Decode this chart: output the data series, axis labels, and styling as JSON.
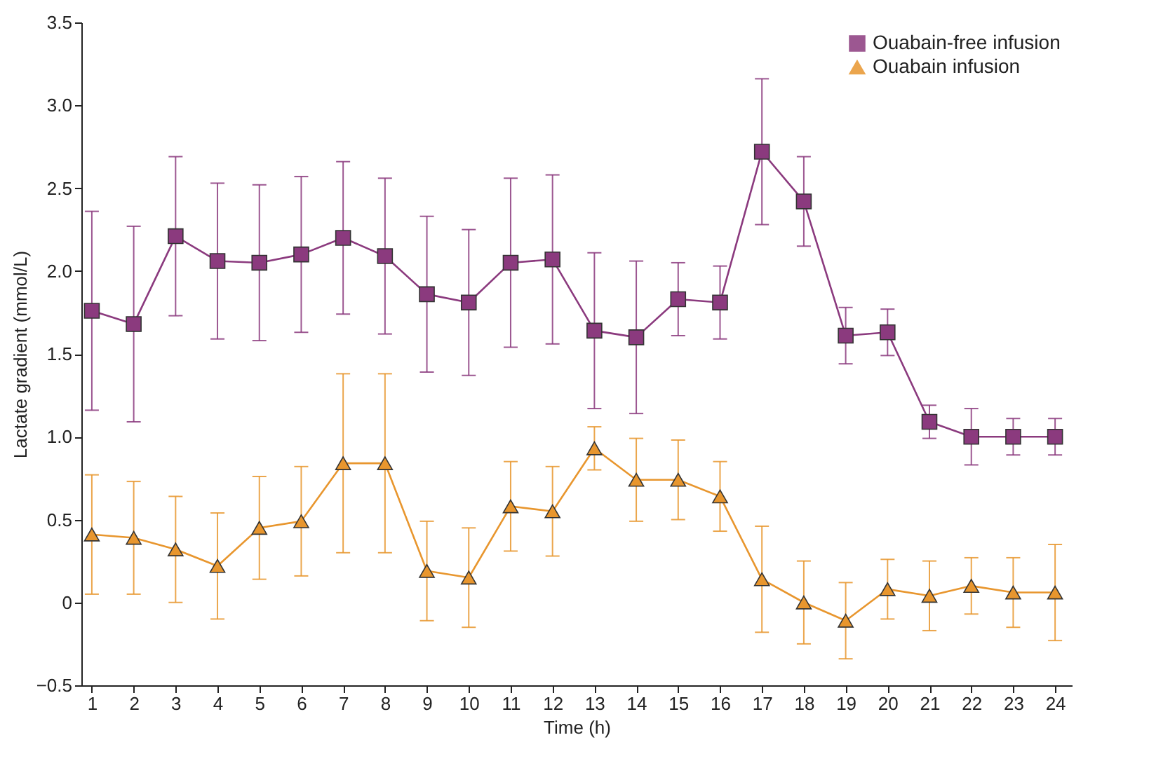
{
  "chart_data": {
    "type": "line",
    "xlabel": "Time (h)",
    "ylabel": "Lactate gradient (mmol/L)",
    "x": [
      1,
      2,
      3,
      4,
      5,
      6,
      7,
      8,
      9,
      10,
      11,
      12,
      13,
      14,
      15,
      16,
      17,
      18,
      19,
      20,
      21,
      22,
      23,
      24
    ],
    "series": [
      {
        "name": "Ouabain-free infusion",
        "color": "#8b3a7e",
        "marker": "square",
        "values": [
          1.76,
          1.68,
          2.21,
          2.06,
          2.05,
          2.1,
          2.2,
          2.09,
          1.86,
          1.81,
          2.05,
          2.07,
          1.64,
          1.6,
          1.83,
          1.81,
          2.72,
          2.42,
          1.61,
          1.63,
          1.09,
          1.0,
          1.0,
          1.0
        ],
        "errors": [
          0.6,
          0.59,
          0.48,
          0.47,
          0.47,
          0.47,
          0.46,
          0.47,
          0.47,
          0.44,
          0.51,
          0.51,
          0.47,
          0.46,
          0.22,
          0.22,
          0.44,
          0.27,
          0.17,
          0.14,
          0.1,
          0.17,
          0.11,
          0.11
        ]
      },
      {
        "name": "Ouabain infusion",
        "color": "#e8962e",
        "marker": "triangle",
        "values": [
          0.41,
          0.39,
          0.32,
          0.22,
          0.45,
          0.49,
          0.84,
          0.84,
          0.19,
          0.15,
          0.58,
          0.55,
          0.93,
          0.74,
          0.74,
          0.64,
          0.14,
          0.0,
          -0.11,
          0.08,
          0.04,
          0.1,
          0.06,
          0.06
        ],
        "errors": [
          0.36,
          0.34,
          0.32,
          0.32,
          0.31,
          0.33,
          0.54,
          0.54,
          0.3,
          0.3,
          0.27,
          0.27,
          0.13,
          0.25,
          0.24,
          0.21,
          0.32,
          0.25,
          0.23,
          0.18,
          0.21,
          0.17,
          0.21,
          0.29
        ]
      }
    ],
    "xlim": [
      0.75,
      24.4
    ],
    "ylim": [
      -0.5,
      3.5
    ],
    "xticks": [
      1,
      2,
      3,
      4,
      5,
      6,
      7,
      8,
      9,
      10,
      11,
      12,
      13,
      14,
      15,
      16,
      17,
      18,
      19,
      20,
      21,
      22,
      23,
      24
    ],
    "yticks": [
      {
        "value": -0.5,
        "label": "−0.5"
      },
      0,
      0.5,
      {
        "value": 1,
        "label": "1.0"
      },
      1.5,
      {
        "value": 2,
        "label": "2.0"
      },
      2.5,
      {
        "value": 3,
        "label": "3.0"
      },
      3.5
    ],
    "legend": "top right",
    "grid": false,
    "line_style": "solid"
  }
}
